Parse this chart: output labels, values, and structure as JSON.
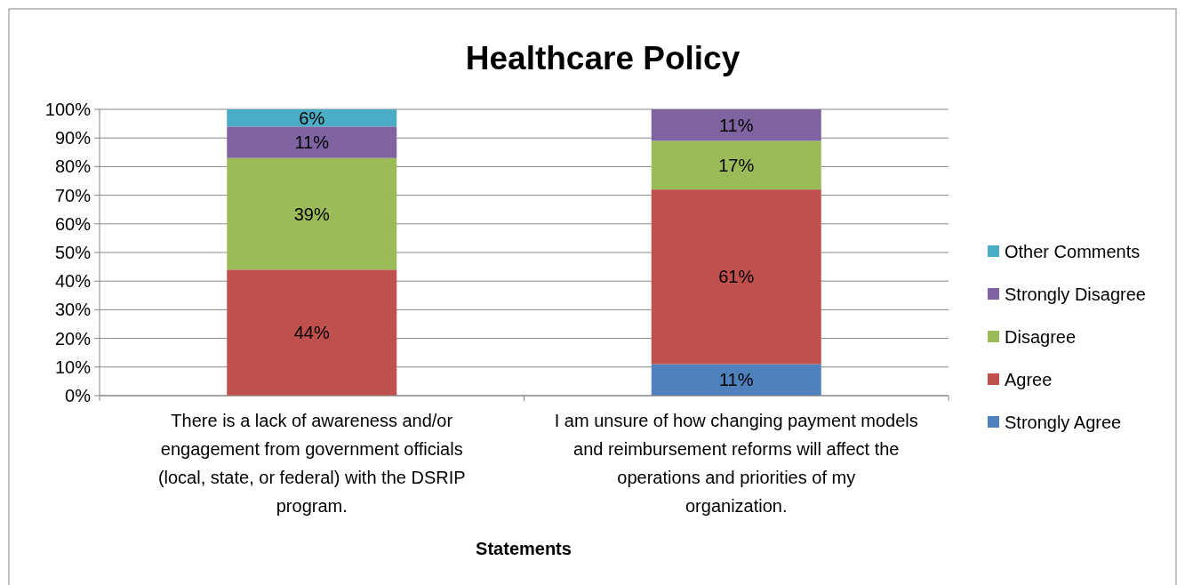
{
  "chart_data": {
    "type": "bar",
    "title": "Healthcare Policy",
    "xlabel": "Statements",
    "stacked": true,
    "categories": [
      "There is a lack of awareness and/or engagement from government officials (local, state, or federal) with the DSRIP program.",
      "I am unsure of how changing payment models and reimbursement reforms will affect the operations and priorities of my organization."
    ],
    "series": [
      {
        "name": "Strongly Agree",
        "color": "#4f81bd",
        "values": [
          null,
          11
        ],
        "value_labels": [
          null,
          "11%"
        ]
      },
      {
        "name": "Agree",
        "color": "#c0504d",
        "values": [
          44,
          61
        ],
        "value_labels": [
          "44%",
          "61%"
        ]
      },
      {
        "name": "Disagree",
        "color": "#9bbb59",
        "values": [
          39,
          17
        ],
        "value_labels": [
          "39%",
          "17%"
        ]
      },
      {
        "name": "Strongly Disagree",
        "color": "#8064a2",
        "values": [
          11,
          11
        ],
        "value_labels": [
          "11%",
          "11%"
        ]
      },
      {
        "name": "Other Comments",
        "color": "#4bacc6",
        "values": [
          6,
          null
        ],
        "value_labels": [
          "6%",
          null
        ]
      }
    ],
    "ylim": [
      0,
      100
    ],
    "yticks": [
      {
        "value": 0,
        "label": "0%"
      },
      {
        "value": 10,
        "label": "10%"
      },
      {
        "value": 20,
        "label": "20%"
      },
      {
        "value": 30,
        "label": "30%"
      },
      {
        "value": 40,
        "label": "40%"
      },
      {
        "value": 50,
        "label": "50%"
      },
      {
        "value": 60,
        "label": "60%"
      },
      {
        "value": 70,
        "label": "70%"
      },
      {
        "value": 80,
        "label": "80%"
      },
      {
        "value": 90,
        "label": "90%"
      },
      {
        "value": 100,
        "label": "100%"
      }
    ],
    "grid": "y",
    "legend": "right"
  }
}
